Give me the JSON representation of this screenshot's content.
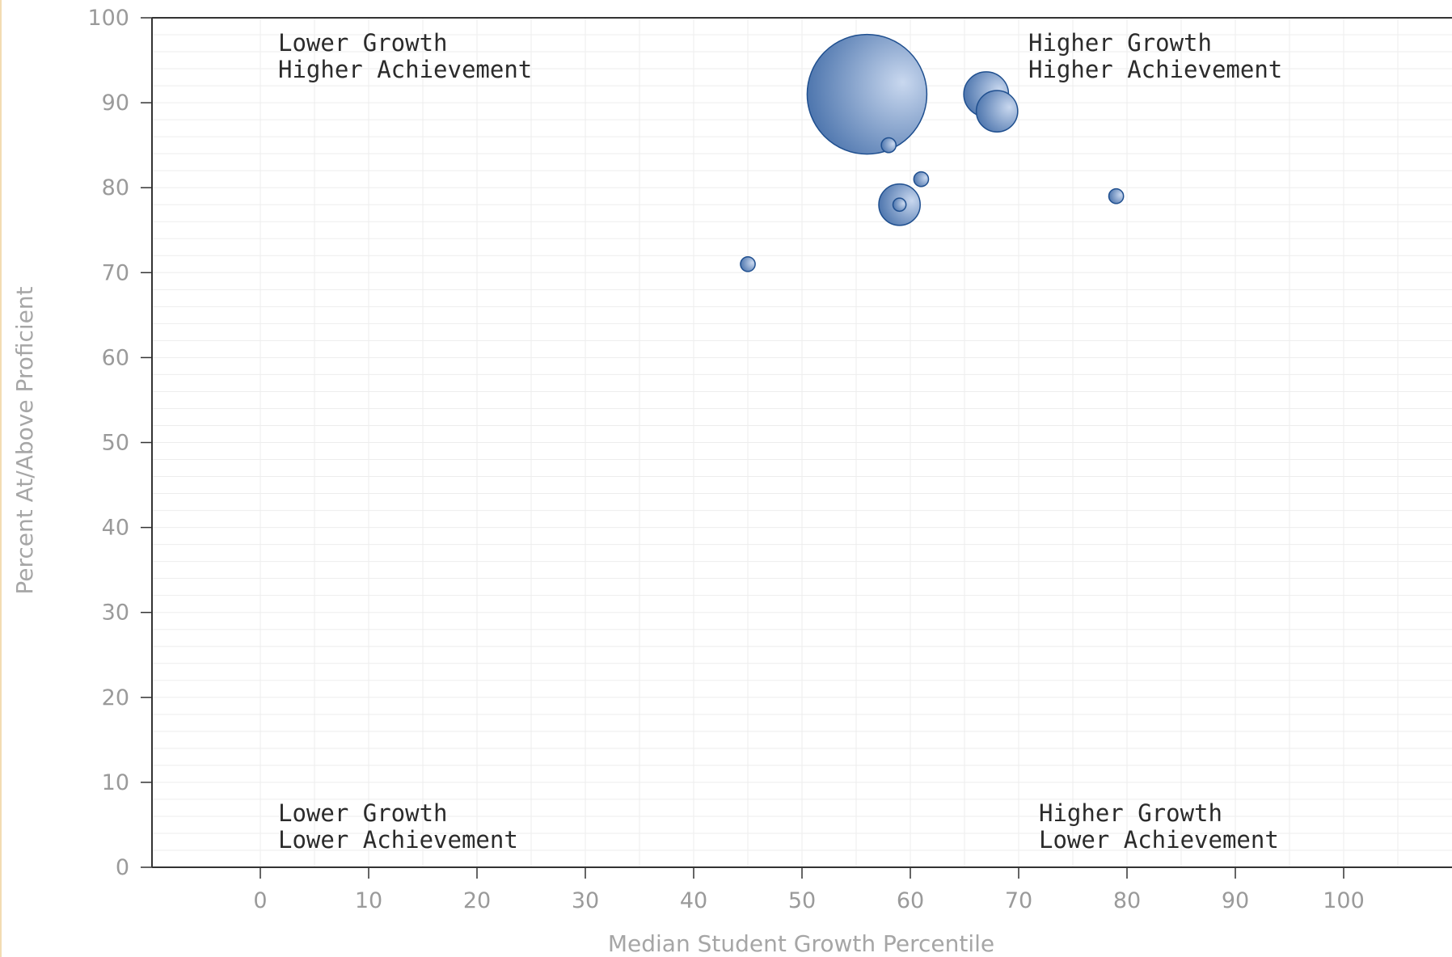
{
  "chart_data": {
    "type": "scatter",
    "subtype": "bubble",
    "xlabel": "Median Student Growth Percentile",
    "ylabel": "Percent At/Above Proficient",
    "xlim": [
      -10,
      110
    ],
    "ylim": [
      0,
      100
    ],
    "x_ticks": [
      0,
      10,
      20,
      30,
      40,
      50,
      60,
      70,
      80,
      90,
      100
    ],
    "y_ticks": [
      0,
      10,
      20,
      30,
      40,
      50,
      60,
      70,
      80,
      90,
      100
    ],
    "grid": true,
    "legend": "none",
    "quadrant_labels": {
      "top_left": [
        "Lower Growth",
        "Higher Achievement"
      ],
      "top_right": [
        "Higher Growth",
        "Higher Achievement"
      ],
      "bottom_left": [
        "Lower Growth",
        "Lower Achievement"
      ],
      "bottom_right": [
        "Higher Growth",
        "Lower Achievement"
      ]
    },
    "points": [
      {
        "x": 56,
        "y": 91,
        "size": 100
      },
      {
        "x": 67,
        "y": 91,
        "size": 14
      },
      {
        "x": 68,
        "y": 89,
        "size": 12
      },
      {
        "x": 58,
        "y": 85,
        "size": 1.5
      },
      {
        "x": 61,
        "y": 81,
        "size": 1.5
      },
      {
        "x": 79,
        "y": 79,
        "size": 1.5
      },
      {
        "x": 59,
        "y": 78,
        "size": 12
      },
      {
        "x": 59,
        "y": 78,
        "size": 1.2
      },
      {
        "x": 45,
        "y": 71,
        "size": 1.5
      }
    ],
    "colors": {
      "bubble_dark": "#3f6aa6",
      "bubble_light": "#c9d8ef",
      "bubble_stroke": "#1f4f8f",
      "axis": "#333333",
      "grid": "#ededed",
      "tick_text": "#9a9a9a",
      "axis_title": "#a6a6a6",
      "quadrant_text": "#2b2b2b"
    }
  }
}
